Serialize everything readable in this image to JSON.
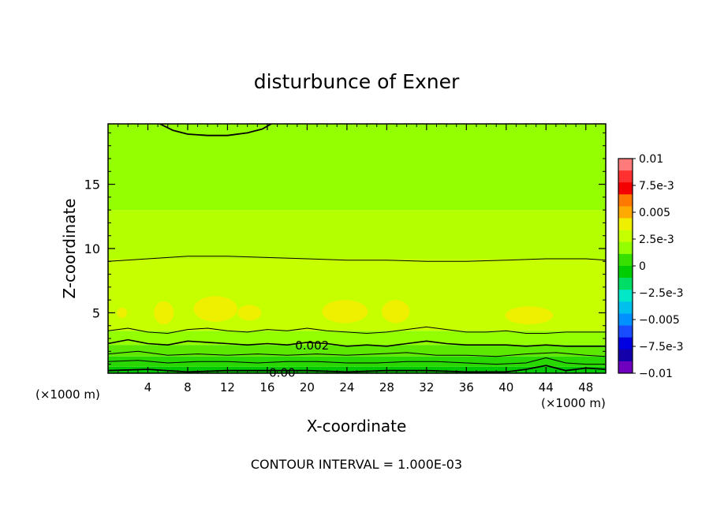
{
  "chart_data": {
    "type": "heatmap",
    "title": "disturbunce of Exner",
    "xlabel": "X-coordinate",
    "ylabel": "Z-coordinate",
    "x_unit": "(×1000 m)",
    "x_unit_right": "(×1000 m)",
    "xlim": [
      0,
      50
    ],
    "ylim": [
      0.3,
      19.7
    ],
    "x_ticks": [
      4,
      8,
      12,
      16,
      20,
      24,
      28,
      32,
      36,
      40,
      44,
      48
    ],
    "y_ticks": [
      5,
      10,
      15
    ],
    "footer": "CONTOUR INTERVAL = 1.000E-03",
    "contour_labels": [
      {
        "text": "0.002",
        "x": 20.5,
        "y": 2.5
      },
      {
        "text": "0.00",
        "x": 17.5,
        "y": 0.4
      }
    ],
    "colorbar": {
      "labels": [
        "0.01",
        "7.5e-3",
        "0.005",
        "2.5e-3",
        "0",
        "−2.5e-3",
        "−0.005",
        "−7.5e-3",
        "−0.01"
      ],
      "colors": [
        "#ff7b7b",
        "#ff3030",
        "#f50000",
        "#ff7800",
        "#ffaa00",
        "#eef000",
        "#c6ff00",
        "#94ff00",
        "#38e000",
        "#00cd00",
        "#00dd66",
        "#00e8c8",
        "#00c0ee",
        "#0090ff",
        "#1a4cff",
        "#0000e0",
        "#1400aa",
        "#7000c0"
      ]
    },
    "bands": [
      {
        "z": [
          0.3,
          0.8
        ],
        "color": "#00c800",
        "level": "0 to 1e-3"
      },
      {
        "z": [
          0.8,
          1.6
        ],
        "color": "#28d800",
        "level": "0 to 1e-3"
      },
      {
        "z": [
          1.6,
          2.5
        ],
        "color": "#5ce800",
        "level": "1e-3 to 2e-3"
      },
      {
        "z": [
          2.5,
          3.6
        ],
        "color": "#94ff00",
        "level": "2e-3 to 3e-3"
      },
      {
        "z": [
          3.6,
          9.2
        ],
        "color": "#c6ff00",
        "level": "3e-3 to 4e-3"
      },
      {
        "z": [
          9.2,
          13.0
        ],
        "color": "#b4ff00",
        "level": "3e-3 to 4e-3"
      },
      {
        "z": [
          13.0,
          19.7
        ],
        "color": "#94ff00",
        "level": "2e-3 to 3e-3"
      }
    ],
    "contours": [
      {
        "name": "c-0.004",
        "points": [
          [
            0,
            9.0
          ],
          [
            4,
            9.2
          ],
          [
            8,
            9.4
          ],
          [
            12,
            9.4
          ],
          [
            16,
            9.3
          ],
          [
            20,
            9.2
          ],
          [
            24,
            9.1
          ],
          [
            28,
            9.1
          ],
          [
            32,
            9.0
          ],
          [
            36,
            9.0
          ],
          [
            40,
            9.1
          ],
          [
            44,
            9.2
          ],
          [
            48,
            9.2
          ],
          [
            50,
            9.1
          ]
        ],
        "weight": 1
      },
      {
        "name": "c-0.003",
        "points": [
          [
            0,
            3.6
          ],
          [
            2,
            3.8
          ],
          [
            4,
            3.5
          ],
          [
            6,
            3.4
          ],
          [
            8,
            3.7
          ],
          [
            10,
            3.8
          ],
          [
            12,
            3.6
          ],
          [
            14,
            3.5
          ],
          [
            16,
            3.7
          ],
          [
            18,
            3.6
          ],
          [
            20,
            3.8
          ],
          [
            22,
            3.6
          ],
          [
            24,
            3.5
          ],
          [
            26,
            3.4
          ],
          [
            28,
            3.5
          ],
          [
            30,
            3.7
          ],
          [
            32,
            3.9
          ],
          [
            34,
            3.7
          ],
          [
            36,
            3.5
          ],
          [
            38,
            3.5
          ],
          [
            40,
            3.6
          ],
          [
            42,
            3.4
          ],
          [
            44,
            3.4
          ],
          [
            46,
            3.5
          ],
          [
            48,
            3.5
          ],
          [
            50,
            3.5
          ]
        ],
        "weight": 1
      },
      {
        "name": "c-0.0025",
        "points": [
          [
            0,
            2.6
          ],
          [
            2,
            2.9
          ],
          [
            4,
            2.6
          ],
          [
            6,
            2.5
          ],
          [
            8,
            2.8
          ],
          [
            10,
            2.7
          ],
          [
            12,
            2.6
          ],
          [
            14,
            2.5
          ],
          [
            16,
            2.6
          ],
          [
            18,
            2.5
          ],
          [
            20,
            2.7
          ],
          [
            22,
            2.6
          ],
          [
            24,
            2.4
          ],
          [
            26,
            2.5
          ],
          [
            28,
            2.4
          ],
          [
            30,
            2.6
          ],
          [
            32,
            2.8
          ],
          [
            34,
            2.6
          ],
          [
            36,
            2.5
          ],
          [
            38,
            2.5
          ],
          [
            40,
            2.5
          ],
          [
            42,
            2.4
          ],
          [
            44,
            2.5
          ],
          [
            46,
            2.4
          ],
          [
            48,
            2.4
          ],
          [
            50,
            2.4
          ]
        ],
        "weight": 1.6
      },
      {
        "name": "c-0.0015",
        "points": [
          [
            0,
            1.8
          ],
          [
            3,
            2.0
          ],
          [
            6,
            1.7
          ],
          [
            9,
            1.8
          ],
          [
            12,
            1.7
          ],
          [
            15,
            1.8
          ],
          [
            18,
            1.7
          ],
          [
            21,
            1.8
          ],
          [
            24,
            1.7
          ],
          [
            27,
            1.8
          ],
          [
            30,
            1.9
          ],
          [
            33,
            1.7
          ],
          [
            36,
            1.7
          ],
          [
            39,
            1.6
          ],
          [
            42,
            1.8
          ],
          [
            45,
            1.9
          ],
          [
            48,
            1.7
          ],
          [
            50,
            1.6
          ]
        ],
        "weight": 1
      },
      {
        "name": "c-0.001",
        "points": [
          [
            0,
            1.2
          ],
          [
            3,
            1.3
          ],
          [
            6,
            1.1
          ],
          [
            9,
            1.2
          ],
          [
            12,
            1.2
          ],
          [
            15,
            1.1
          ],
          [
            18,
            1.2
          ],
          [
            21,
            1.2
          ],
          [
            24,
            1.1
          ],
          [
            27,
            1.1
          ],
          [
            30,
            1.2
          ],
          [
            33,
            1.2
          ],
          [
            36,
            1.1
          ],
          [
            39,
            1.0
          ],
          [
            42,
            1.1
          ],
          [
            44,
            1.5
          ],
          [
            46,
            1.1
          ],
          [
            48,
            1.0
          ],
          [
            50,
            1.0
          ]
        ],
        "weight": 1
      },
      {
        "name": "c-0.0",
        "points": [
          [
            0,
            0.5
          ],
          [
            4,
            0.6
          ],
          [
            8,
            0.4
          ],
          [
            12,
            0.5
          ],
          [
            16,
            0.5
          ],
          [
            20,
            0.5
          ],
          [
            24,
            0.4
          ],
          [
            28,
            0.5
          ],
          [
            32,
            0.5
          ],
          [
            36,
            0.4
          ],
          [
            40,
            0.4
          ],
          [
            42,
            0.6
          ],
          [
            44,
            0.9
          ],
          [
            46,
            0.5
          ],
          [
            48,
            0.7
          ],
          [
            50,
            0.6
          ]
        ],
        "weight": 1.8
      },
      {
        "name": "c-top",
        "points": [
          [
            5.2,
            19.7
          ],
          [
            6.5,
            19.2
          ],
          [
            8,
            18.9
          ],
          [
            10,
            18.8
          ],
          [
            12,
            18.8
          ],
          [
            14,
            19.0
          ],
          [
            15.5,
            19.3
          ],
          [
            16.4,
            19.7
          ]
        ],
        "weight": 1.8
      }
    ],
    "blobs": [
      {
        "cx": 5.6,
        "cy": 5.0,
        "rx": 1.0,
        "ry": 0.9
      },
      {
        "cx": 10.8,
        "cy": 5.3,
        "rx": 2.2,
        "ry": 1.0
      },
      {
        "cx": 14.2,
        "cy": 5.0,
        "rx": 1.2,
        "ry": 0.6
      },
      {
        "cx": 23.8,
        "cy": 5.1,
        "rx": 2.3,
        "ry": 0.9
      },
      {
        "cx": 28.9,
        "cy": 5.1,
        "rx": 1.4,
        "ry": 0.9
      },
      {
        "cx": 42.3,
        "cy": 4.8,
        "rx": 2.4,
        "ry": 0.7
      },
      {
        "cx": 1.4,
        "cy": 5.0,
        "rx": 0.5,
        "ry": 0.4
      }
    ]
  }
}
